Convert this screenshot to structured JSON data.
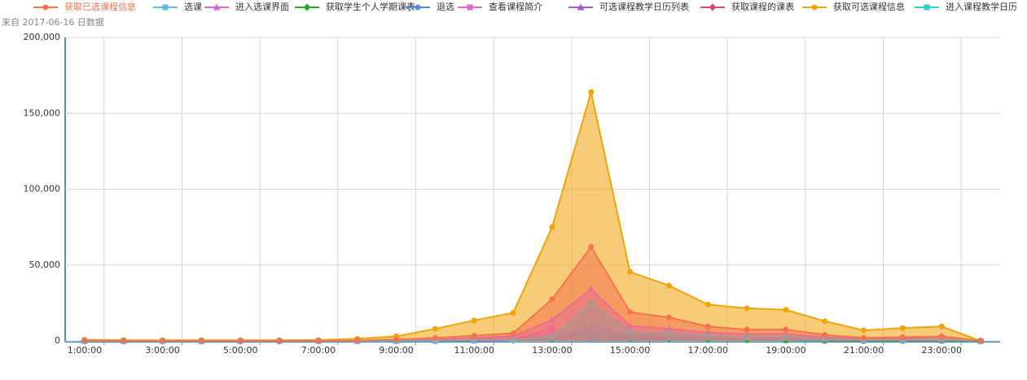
{
  "chart_data": {
    "type": "area",
    "subtitle": "来自 2017-06-16 日数据",
    "categories": [
      "1:00:00",
      null,
      "3:00:00",
      null,
      "5:00:00",
      null,
      "7:00:00",
      null,
      "9:00:00",
      null,
      "11:00:00",
      null,
      "13:00:00",
      null,
      "15:00:00",
      null,
      "17:00:00",
      null,
      "19:00:00",
      null,
      "21:00:00",
      null,
      "23:00:00",
      null
    ],
    "ylim": [
      0,
      200000
    ],
    "yticks": [
      0,
      {
        "value": 50000,
        "label": "50,000"
      },
      {
        "value": 100000,
        "label": "100,000"
      },
      {
        "value": 150000,
        "label": "150,000"
      },
      {
        "value": 200000,
        "label": "200,000"
      }
    ],
    "grid": true,
    "legend": "top",
    "series": [
      {
        "name": "获取已选课程信息",
        "color": "#f4734f",
        "marker": "circle",
        "values": [
          300,
          100,
          100,
          100,
          100,
          100,
          100,
          300,
          800,
          2000,
          3500,
          5000,
          27500,
          62000,
          19000,
          15500,
          9500,
          7500,
          7500,
          4000,
          2000,
          2500,
          3000,
          0
        ]
      },
      {
        "name": "选课",
        "color": "#5bc0de",
        "marker": "square",
        "values": [
          0,
          0,
          0,
          0,
          0,
          0,
          0,
          0,
          100,
          300,
          600,
          800,
          3000,
          25000,
          6000,
          5000,
          3500,
          2500,
          2500,
          1500,
          800,
          900,
          1200,
          0
        ]
      },
      {
        "name": "进入选课界面",
        "color": "#d966e0",
        "marker": "triangle",
        "values": [
          0,
          0,
          0,
          0,
          0,
          0,
          0,
          0,
          200,
          800,
          2000,
          3000,
          14000,
          34000,
          10000,
          8000,
          5500,
          4500,
          4500,
          2500,
          1200,
          1500,
          3000,
          0
        ]
      },
      {
        "name": "获取学生个人学期课表",
        "color": "#22aa22",
        "marker": "diamond",
        "values": [
          0,
          0,
          0,
          0,
          0,
          0,
          0,
          0,
          100,
          300,
          500,
          600,
          1500,
          4000,
          1500,
          1200,
          900,
          700,
          700,
          400,
          200,
          300,
          400,
          0
        ]
      },
      {
        "name": "退选",
        "color": "#5b8bd6",
        "marker": "circle",
        "values": [
          0,
          0,
          0,
          0,
          0,
          0,
          0,
          0,
          100,
          200,
          300,
          400,
          1500,
          6000,
          2000,
          1500,
          1000,
          800,
          800,
          500,
          300,
          300,
          400,
          0
        ]
      },
      {
        "name": "查看课程简介",
        "color": "#e466c8",
        "marker": "square",
        "values": [
          0,
          0,
          0,
          0,
          0,
          0,
          0,
          0,
          100,
          200,
          300,
          1000,
          8000,
          3000,
          2500,
          1800,
          1500,
          1500,
          900,
          500,
          600,
          700,
          400,
          0
        ]
      },
      {
        "name": "可选课程教学日历列表",
        "color": "#a855d6",
        "marker": "triangle",
        "values": [
          0,
          0,
          0,
          0,
          0,
          0,
          0,
          0,
          100,
          400,
          800,
          1200,
          3000,
          10000,
          4000,
          3500,
          2500,
          2000,
          2000,
          1200,
          600,
          700,
          900,
          0
        ]
      },
      {
        "name": "获取课程的课表",
        "color": "#d94a6a",
        "marker": "diamond",
        "values": [
          0,
          0,
          0,
          0,
          0,
          0,
          0,
          0,
          100,
          300,
          600,
          800,
          2000,
          7000,
          3000,
          2500,
          2000,
          1500,
          1500,
          900,
          500,
          600,
          700,
          0
        ]
      },
      {
        "name": "获取可选课程信息",
        "color": "#f0a30a",
        "marker": "circle",
        "values": [
          800,
          500,
          500,
          500,
          500,
          500,
          600,
          1500,
          3000,
          8000,
          13500,
          18500,
          75000,
          164000,
          45500,
          36500,
          24000,
          21500,
          20500,
          13000,
          7000,
          8500,
          9500,
          0
        ]
      },
      {
        "name": "进入课程教学日历",
        "color": "#2ed0c8",
        "marker": "square",
        "values": [
          0,
          0,
          0,
          0,
          0,
          0,
          0,
          0,
          100,
          200,
          300,
          1000,
          4000,
          1500,
          1200,
          900,
          700,
          700,
          400,
          200,
          300,
          400,
          200,
          0
        ]
      }
    ]
  }
}
